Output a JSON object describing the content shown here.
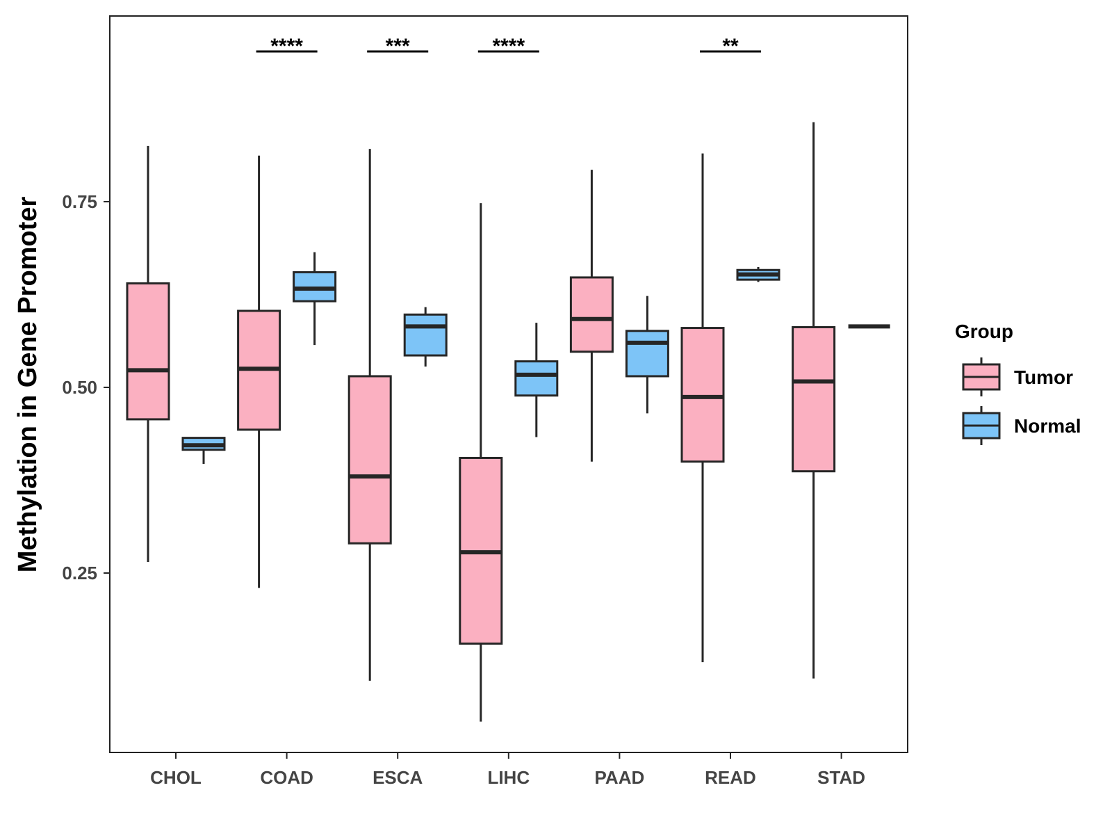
{
  "chart_data": {
    "type": "boxplot",
    "title": "",
    "xlabel": "",
    "ylabel": "Methylation in Gene Promoter",
    "ylim": [
      0.0,
      1.0
    ],
    "yticks": [
      "0.25",
      "0.50",
      "0.75"
    ],
    "ytick_values": [
      0.25,
      0.5,
      0.75
    ],
    "grid": false,
    "categories": [
      "CHOL",
      "COAD",
      "ESCA",
      "LIHC",
      "PAAD",
      "READ",
      "STAD"
    ],
    "series": [
      {
        "name": "Tumor",
        "color": "#FBB0C1",
        "boxes": [
          {
            "category": "CHOL",
            "min": 0.265,
            "q1": 0.457,
            "median": 0.523,
            "q3": 0.64,
            "max": 0.825
          },
          {
            "category": "COAD",
            "min": 0.23,
            "q1": 0.443,
            "median": 0.525,
            "q3": 0.603,
            "max": 0.812
          },
          {
            "category": "ESCA",
            "min": 0.105,
            "q1": 0.29,
            "median": 0.38,
            "q3": 0.515,
            "max": 0.821
          },
          {
            "category": "LIHC",
            "min": 0.05,
            "q1": 0.155,
            "median": 0.278,
            "q3": 0.405,
            "max": 0.748
          },
          {
            "category": "PAAD",
            "min": 0.4,
            "q1": 0.548,
            "median": 0.592,
            "q3": 0.648,
            "max": 0.793
          },
          {
            "category": "READ",
            "min": 0.13,
            "q1": 0.4,
            "median": 0.487,
            "q3": 0.58,
            "max": 0.815
          },
          {
            "category": "STAD",
            "min": 0.108,
            "q1": 0.387,
            "median": 0.508,
            "q3": 0.581,
            "max": 0.857
          }
        ]
      },
      {
        "name": "Normal",
        "color": "#7DC4F7",
        "boxes": [
          {
            "category": "CHOL",
            "min": 0.397,
            "q1": 0.416,
            "median": 0.422,
            "q3": 0.432,
            "max": 0.432
          },
          {
            "category": "COAD",
            "min": 0.557,
            "q1": 0.616,
            "median": 0.633,
            "q3": 0.655,
            "max": 0.682
          },
          {
            "category": "ESCA",
            "min": 0.528,
            "q1": 0.543,
            "median": 0.582,
            "q3": 0.598,
            "max": 0.608
          },
          {
            "category": "LIHC",
            "min": 0.433,
            "q1": 0.489,
            "median": 0.517,
            "q3": 0.535,
            "max": 0.587
          },
          {
            "category": "PAAD",
            "min": 0.465,
            "q1": 0.515,
            "median": 0.56,
            "q3": 0.576,
            "max": 0.623
          },
          {
            "category": "READ",
            "min": 0.642,
            "q1": 0.645,
            "median": 0.652,
            "q3": 0.658,
            "max": 0.662
          },
          {
            "category": "STAD",
            "min": 0.582,
            "q1": 0.582,
            "median": 0.582,
            "q3": 0.582,
            "max": 0.582
          }
        ]
      }
    ],
    "annotations": [
      {
        "category": "COAD",
        "label": "****"
      },
      {
        "category": "ESCA",
        "label": "***"
      },
      {
        "category": "LIHC",
        "label": "****"
      },
      {
        "category": "READ",
        "label": "**"
      }
    ],
    "legend": {
      "title": "Group",
      "placement": "right",
      "entries": [
        {
          "label": "Tumor",
          "color": "#FBB0C1"
        },
        {
          "label": "Normal",
          "color": "#7DC4F7"
        }
      ]
    }
  }
}
